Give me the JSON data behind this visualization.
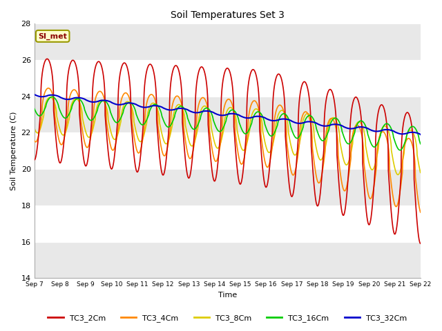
{
  "title": "Soil Temperatures Set 3",
  "xlabel": "Time",
  "ylabel": "Soil Temperature (C)",
  "ylim": [
    14,
    28
  ],
  "yticks": [
    14,
    16,
    18,
    20,
    22,
    24,
    26,
    28
  ],
  "x_tick_labels": [
    "Sep 7",
    "Sep 8",
    "Sep 9",
    "Sep 10",
    "Sep 11",
    "Sep 12",
    "Sep 13",
    "Sep 14",
    "Sep 15",
    "Sep 16",
    "Sep 17",
    "Sep 18",
    "Sep 19",
    "Sep 20",
    "Sep 21",
    "Sep 22"
  ],
  "colors": {
    "TC3_2Cm": "#cc0000",
    "TC3_4Cm": "#ff8800",
    "TC3_8Cm": "#ddcc00",
    "TC3_16Cm": "#00cc00",
    "TC3_32Cm": "#0000cc"
  },
  "legend_label": "SI_met",
  "band_color": "#e8e8e8",
  "linewidth": 1.2
}
